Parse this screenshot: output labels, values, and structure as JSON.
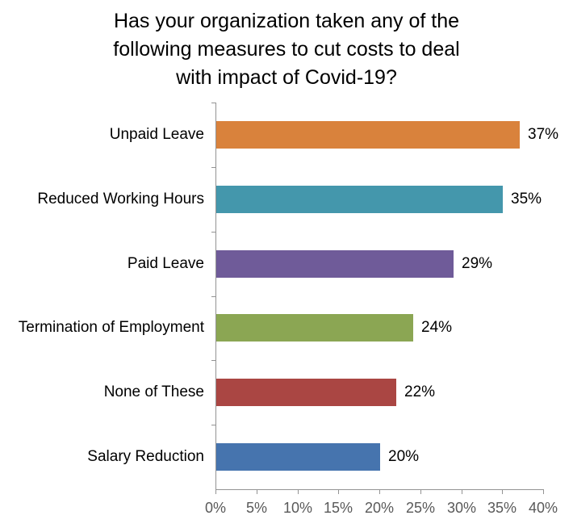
{
  "chart_data": {
    "type": "bar",
    "orientation": "horizontal",
    "title": "Has your organization taken any of the following measures to cut costs to deal with impact of Covid-19?",
    "title_lines": [
      "Has your organization taken any of the",
      "following measures to cut costs to deal",
      "with impact of Covid-19?"
    ],
    "categories": [
      "Unpaid Leave",
      "Reduced Working Hours",
      "Paid Leave",
      "Termination of Employment",
      "None of These",
      "Salary Reduction"
    ],
    "values": [
      37,
      35,
      29,
      24,
      22,
      20
    ],
    "value_labels": [
      "37%",
      "35%",
      "29%",
      "24%",
      "22%",
      "20%"
    ],
    "bar_colors": [
      "#D9823C",
      "#4497AC",
      "#6F5B99",
      "#8BA653",
      "#AA4643",
      "#4674AE"
    ],
    "xlabel": "",
    "ylabel": "",
    "xlim": [
      0,
      40
    ],
    "x_ticks": [
      0,
      5,
      10,
      15,
      20,
      25,
      30,
      35,
      40
    ],
    "x_tick_labels": [
      "0%",
      "5%",
      "10%",
      "15%",
      "20%",
      "25%",
      "30%",
      "35%",
      "40%"
    ],
    "grid": false,
    "legend": false,
    "data_labels_position": "outside-end",
    "axis_color": "#939393",
    "tick_label_color": "#595959",
    "label_color": "#000000",
    "background": "#FFFFFF"
  }
}
